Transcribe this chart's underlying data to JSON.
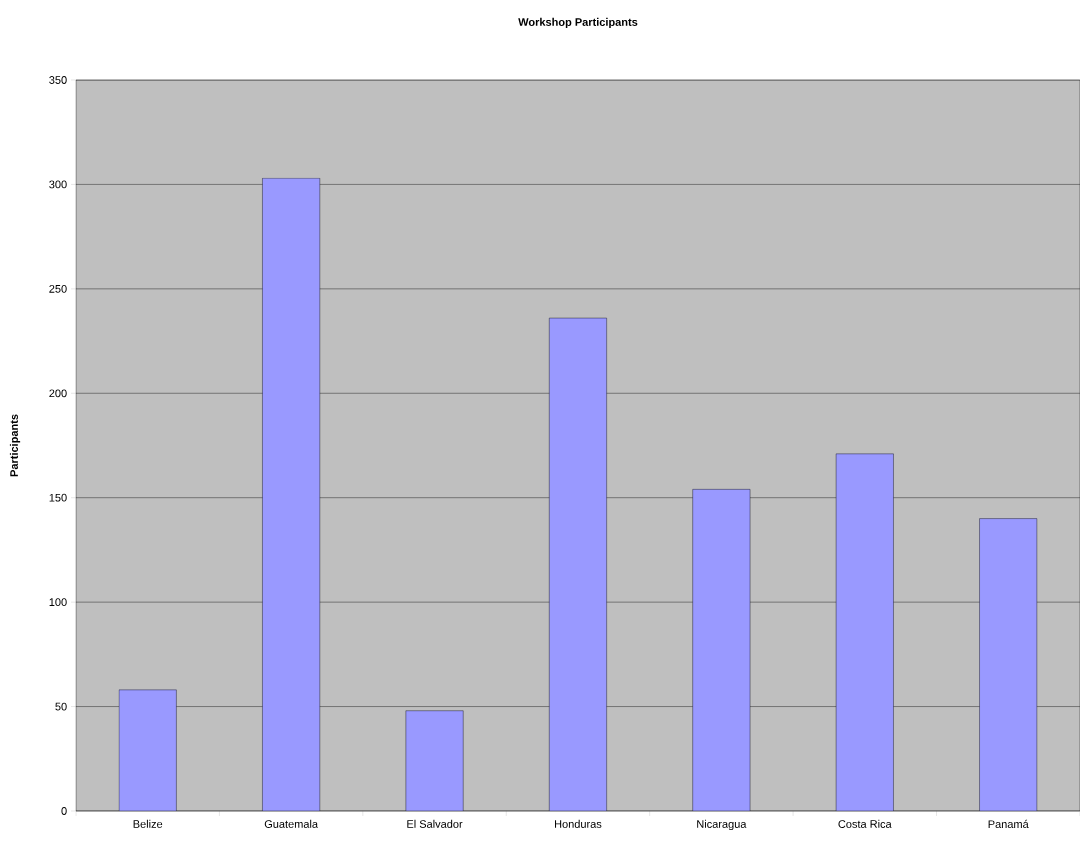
{
  "chart_data": {
    "type": "bar",
    "title": "Workshop Participants",
    "ylabel": "Participants",
    "categories": [
      "Belize",
      "Guatemala",
      "El Salvador",
      "Honduras",
      "Nicaragua",
      "Costa Rica",
      "Panamá"
    ],
    "values": [
      58,
      303,
      48,
      236,
      154,
      171,
      140
    ],
    "color": "#9999ff",
    "ylim": [
      0,
      350
    ],
    "yticks": [
      0,
      50,
      100,
      150,
      200,
      250,
      300,
      350
    ],
    "grid": "y"
  }
}
